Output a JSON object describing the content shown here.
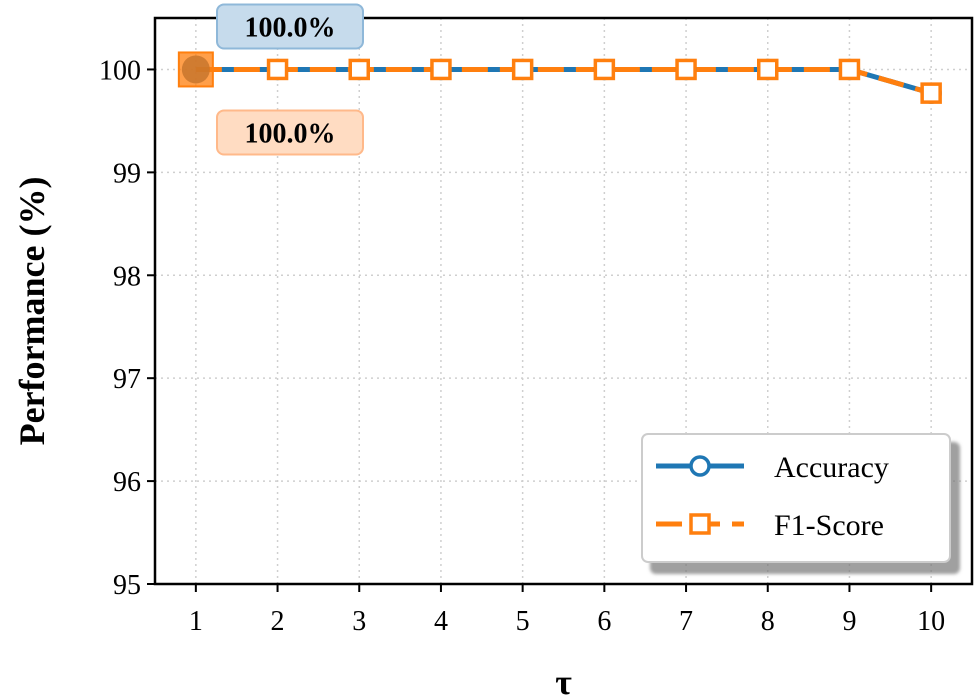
{
  "chart_data": {
    "type": "line",
    "xlabel": "τ",
    "ylabel": "Performance (%)",
    "x": [
      1,
      2,
      3,
      4,
      5,
      6,
      7,
      8,
      9,
      10
    ],
    "x_tick_labels": [
      "1",
      "2",
      "3",
      "4",
      "5",
      "6",
      "7",
      "8",
      "9",
      "10"
    ],
    "ylim": [
      95,
      100.5
    ],
    "y_ticks": [
      95,
      96,
      97,
      98,
      99,
      100
    ],
    "y_tick_labels": [
      "95",
      "96",
      "97",
      "98",
      "99",
      "100"
    ],
    "grid": true,
    "legend_position": "bottom-right",
    "series": [
      {
        "name": "Accuracy",
        "marker": "circle",
        "color": "#1f77b4",
        "values": [
          100,
          100,
          100,
          100,
          100,
          100,
          100,
          100,
          100,
          99.77
        ]
      },
      {
        "name": "F1-Score",
        "marker": "square",
        "color": "#ff7f0e",
        "values": [
          100,
          100,
          100,
          100,
          100,
          100,
          100,
          100,
          100,
          99.77
        ]
      }
    ],
    "annotations": [
      {
        "text": "100.0%",
        "series": "Accuracy",
        "x": 1,
        "placement": "above"
      },
      {
        "text": "100.0%",
        "series": "F1-Score",
        "x": 1,
        "placement": "below"
      }
    ]
  }
}
